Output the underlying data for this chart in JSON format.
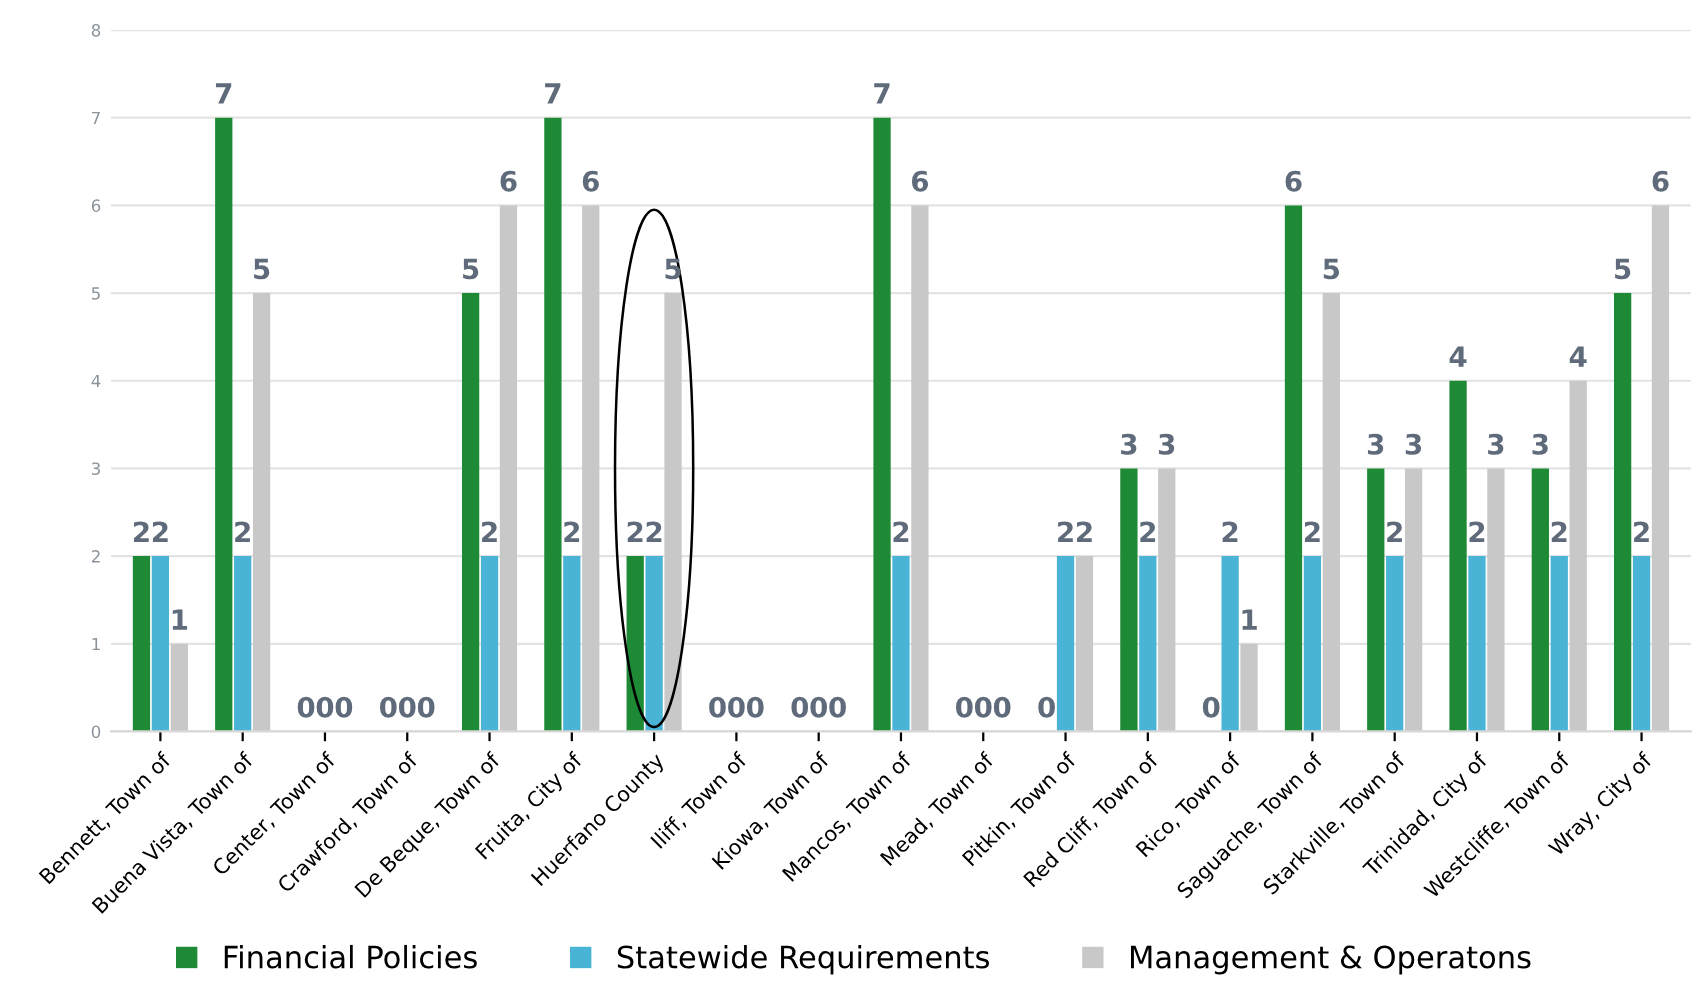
{
  "chart_data": {
    "type": "bar",
    "categories": [
      "Bennett, Town of",
      "Buena Vista, Town of",
      "Center, Town of",
      "Crawford, Town of",
      "De Beque, Town of",
      "Fruita, City of",
      "Huerfano County",
      "Iliff, Town of",
      "Kiowa, Town of",
      "Mancos, Town of",
      "Mead, Town of",
      "Pitkin, Town of",
      "Red Cliff, Town of",
      "Rico, Town of",
      "Saguache, Town of",
      "Starkville, Town of",
      "Trinidad, City of",
      "Westcliffe, Town of",
      "Wray, City of"
    ],
    "series": [
      {
        "name": "Financial Policies",
        "color": "#1e8a35",
        "values": [
          2,
          7,
          0,
          0,
          5,
          7,
          2,
          0,
          0,
          7,
          0,
          0,
          3,
          0,
          6,
          3,
          4,
          3,
          5
        ]
      },
      {
        "name": "Statewide Requirements",
        "color": "#4ab4d6",
        "values": [
          2,
          2,
          0,
          0,
          2,
          2,
          2,
          0,
          0,
          2,
          0,
          2,
          2,
          2,
          2,
          2,
          2,
          2,
          2
        ]
      },
      {
        "name": "Management & Operatons",
        "color": "#c8c8c8",
        "values": [
          1,
          5,
          0,
          0,
          6,
          6,
          5,
          0,
          0,
          6,
          0,
          2,
          3,
          1,
          5,
          3,
          3,
          4,
          6
        ]
      }
    ],
    "ylim": [
      0,
      8
    ],
    "yticks": [
      0,
      1,
      2,
      3,
      4,
      5,
      6,
      7,
      8
    ],
    "grid": "y",
    "legend": "bottom",
    "data_labels": true
  }
}
